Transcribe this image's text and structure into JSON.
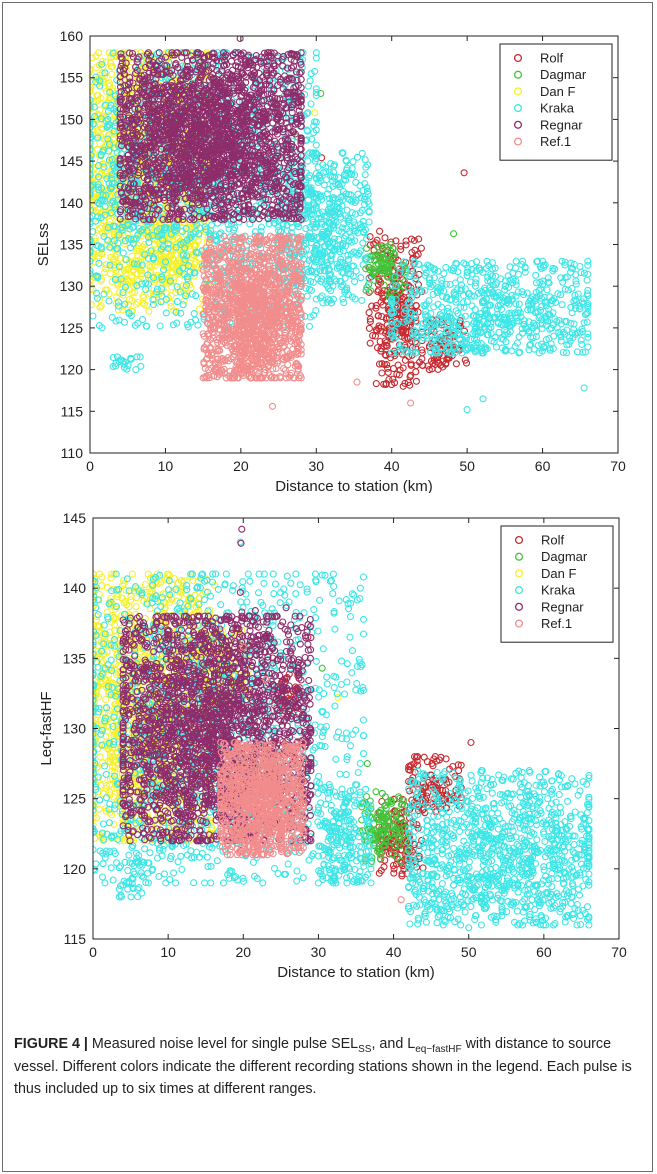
{
  "chart_data": [
    {
      "type": "scatter",
      "title": "",
      "xlabel": "Distance to station (km)",
      "ylabel": "SELss",
      "xlim": [
        0,
        70
      ],
      "ylim": [
        110,
        160
      ],
      "xticks": [
        "0",
        "10",
        "20",
        "30",
        "40",
        "50",
        "60",
        "70"
      ],
      "yticks": [
        "110",
        "115",
        "120",
        "125",
        "130",
        "135",
        "140",
        "145",
        "150",
        "155",
        "160"
      ],
      "legend_position": "top-right",
      "marker": "open-circle",
      "grid": false,
      "series": [
        {
          "name": "Rolf",
          "color": "#c8292f",
          "clusters": [
            {
              "x": [
                37,
                44
              ],
              "y": [
                118,
                136
              ],
              "center": [
                40.5,
                128
              ],
              "spread": [
                1.6,
                3.5
              ]
            },
            {
              "x": [
                44,
                50
              ],
              "y": [
                120,
                126
              ],
              "center": [
                46.5,
                122.5
              ],
              "spread": [
                1.5,
                1.2
              ]
            }
          ],
          "outliers": [
            [
              49.6,
              143.6
            ],
            [
              30.7,
              145.4
            ],
            [
              38.4,
              136.6
            ]
          ]
        },
        {
          "name": "Dagmar",
          "color": "#43c43a",
          "clusters": [
            {
              "x": [
                36.5,
                42
              ],
              "y": [
                128.5,
                135
              ],
              "center": [
                38.8,
                132.5
              ],
              "spread": [
                1.2,
                1.3
              ]
            }
          ],
          "outliers": [
            [
              30.6,
              153.1
            ],
            [
              48.2,
              136.3
            ],
            [
              27.5,
              147.9
            ]
          ]
        },
        {
          "name": "Dan F",
          "color": "#f4f02d",
          "clusters": [
            {
              "x": [
                0,
                16
              ],
              "y": [
                127,
                158
              ],
              "center": [
                6,
                145
              ],
              "spread": [
                4,
                7
              ]
            },
            {
              "x": [
                8,
                14
              ],
              "y": [
                130,
                138
              ],
              "center": [
                11,
                134
              ],
              "spread": [
                1.5,
                2
              ]
            }
          ],
          "outliers": [
            [
              29.8,
              150.8
            ],
            [
              2.2,
              132.6
            ]
          ]
        },
        {
          "name": "Kraka",
          "color": "#3ee6e6",
          "clusters": [
            {
              "x": [
                0,
                30
              ],
              "y": [
                125,
                158
              ],
              "center": [
                14,
                143
              ],
              "spread": [
                8,
                7
              ]
            },
            {
              "x": [
                25,
                37
              ],
              "y": [
                128,
                146
              ],
              "center": [
                31,
                137
              ],
              "spread": [
                3,
                4
              ]
            },
            {
              "x": [
                40,
                66
              ],
              "y": [
                122,
                133
              ],
              "center": [
                52,
                127
              ],
              "spread": [
                7,
                3
              ]
            },
            {
              "x": [
                3,
                7
              ],
              "y": [
                120,
                122
              ],
              "center": [
                5,
                121
              ],
              "spread": [
                1,
                0.6
              ]
            }
          ],
          "outliers": [
            [
              50,
              115.2
            ],
            [
              52.1,
              116.5
            ],
            [
              65.5,
              117.8
            ]
          ]
        },
        {
          "name": "Regnar",
          "color": "#8e2d6b",
          "clusters": [
            {
              "x": [
                4,
                28
              ],
              "y": [
                138,
                158
              ],
              "center": [
                15.5,
                148
              ],
              "spread": [
                6,
                4.5
              ],
              "dense": true
            }
          ],
          "outliers": [
            [
              19.9,
              159.7
            ],
            [
              18.3,
              155.6
            ],
            [
              25.8,
              155.2
            ],
            [
              21.8,
              154.9
            ]
          ]
        },
        {
          "name": "Ref.1",
          "color": "#f28d8d",
          "clusters": [
            {
              "x": [
                15,
                28
              ],
              "y": [
                119,
                136
              ],
              "center": [
                21.7,
                126
              ],
              "spread": [
                3,
                4
              ],
              "dense": true
            }
          ],
          "outliers": [
            [
              24.2,
              115.6
            ],
            [
              42.5,
              116
            ],
            [
              35.4,
              118.5
            ]
          ]
        }
      ]
    },
    {
      "type": "scatter",
      "title": "",
      "xlabel": "Distance to station (km)",
      "ylabel": "Leq-fastHF",
      "xlim": [
        0,
        70
      ],
      "ylim": [
        115,
        145
      ],
      "xticks": [
        "0",
        "10",
        "20",
        "30",
        "40",
        "50",
        "60",
        "70"
      ],
      "yticks": [
        "115",
        "120",
        "125",
        "130",
        "135",
        "140",
        "145"
      ],
      "legend_position": "top-right",
      "marker": "open-circle",
      "grid": false,
      "series": [
        {
          "name": "Rolf",
          "color": "#c8292f",
          "clusters": [
            {
              "x": [
                38,
                44
              ],
              "y": [
                119.5,
                125
              ],
              "center": [
                40.5,
                122
              ],
              "spread": [
                1.3,
                1.2
              ]
            },
            {
              "x": [
                24,
                27.5
              ],
              "y": [
                131,
                134
              ],
              "center": [
                25.8,
                132.3
              ],
              "spread": [
                0.8,
                0.6
              ]
            },
            {
              "x": [
                42,
                49
              ],
              "y": [
                124,
                128
              ],
              "center": [
                45,
                125.8
              ],
              "spread": [
                1.8,
                1
              ]
            }
          ],
          "outliers": [
            [
              28.6,
              136.5
            ],
            [
              50.3,
              129
            ],
            [
              19.7,
              121.3
            ]
          ]
        },
        {
          "name": "Dagmar",
          "color": "#43c43a",
          "clusters": [
            {
              "x": [
                35.5,
                42
              ],
              "y": [
                120.5,
                125.5
              ],
              "center": [
                38.5,
                123
              ],
              "spread": [
                1.5,
                1
              ]
            }
          ],
          "outliers": [
            [
              36.5,
              127.5
            ],
            [
              2.4,
              139
            ],
            [
              30.5,
              134.3
            ]
          ]
        },
        {
          "name": "Dan F",
          "color": "#f4f02d",
          "clusters": [
            {
              "x": [
                0,
                16
              ],
              "y": [
                122,
                141
              ],
              "center": [
                6,
                131
              ],
              "spread": [
                4.5,
                4.5
              ]
            },
            {
              "x": [
                14,
                21
              ],
              "y": [
                131,
                137
              ],
              "center": [
                16.5,
                134
              ],
              "spread": [
                1.8,
                1.5
              ]
            }
          ],
          "outliers": [
            [
              16.2,
              140.2
            ],
            [
              32.6,
              132.2
            ]
          ]
        },
        {
          "name": "Kraka",
          "color": "#3ee6e6",
          "clusters": [
            {
              "x": [
                0,
                36
              ],
              "y": [
                119,
                141
              ],
              "center": [
                14,
                130
              ],
              "spread": [
                9,
                5.5
              ]
            },
            {
              "x": [
                30,
                37
              ],
              "y": [
                119,
                126
              ],
              "center": [
                33,
                122.5
              ],
              "spread": [
                2,
                2
              ]
            },
            {
              "x": [
                42,
                66
              ],
              "y": [
                116,
                127
              ],
              "center": [
                55,
                121
              ],
              "spread": [
                7,
                2.6
              ]
            },
            {
              "x": [
                3.5,
                6.5
              ],
              "y": [
                118,
                120.5
              ],
              "center": [
                5,
                119
              ],
              "spread": [
                1,
                0.7
              ]
            }
          ],
          "outliers": [
            [
              50,
              115.8
            ],
            [
              65.5,
              116.8
            ],
            [
              19.6,
              143.3
            ]
          ]
        },
        {
          "name": "Regnar",
          "color": "#8e2d6b",
          "clusters": [
            {
              "x": [
                4,
                29
              ],
              "y": [
                122,
                138
              ],
              "center": [
                15,
                130
              ],
              "spread": [
                6,
                3.8
              ],
              "dense": true
            }
          ],
          "outliers": [
            [
              19.8,
              144.2
            ],
            [
              19.7,
              143.2
            ],
            [
              19.6,
              139.7
            ],
            [
              19.8,
              138.3
            ],
            [
              19.5,
              136.5
            ],
            [
              21.6,
              138.4
            ],
            [
              23.2,
              137.8
            ],
            [
              25.7,
              138.6
            ]
          ]
        },
        {
          "name": "Ref.1",
          "color": "#f28d8d",
          "clusters": [
            {
              "x": [
                17,
                28
              ],
              "y": [
                121,
                129
              ],
              "center": [
                22.5,
                125
              ],
              "spread": [
                3,
                2
              ],
              "dense": true
            }
          ],
          "outliers": [
            [
              41,
              117.8
            ],
            [
              20,
              135.8
            ],
            [
              23,
              133.5
            ]
          ]
        }
      ]
    }
  ],
  "caption": {
    "label": "FIGURE 4 |",
    "part1": " Measured noise level for single pulse SEL",
    "sub1": "SS",
    "part2": ", and L",
    "sub2": "eq−fastHF",
    "part3": " with distance to source vessel. Different colors indicate the different recording stations shown in the legend. Each pulse is thus included up to six times at different ranges."
  }
}
